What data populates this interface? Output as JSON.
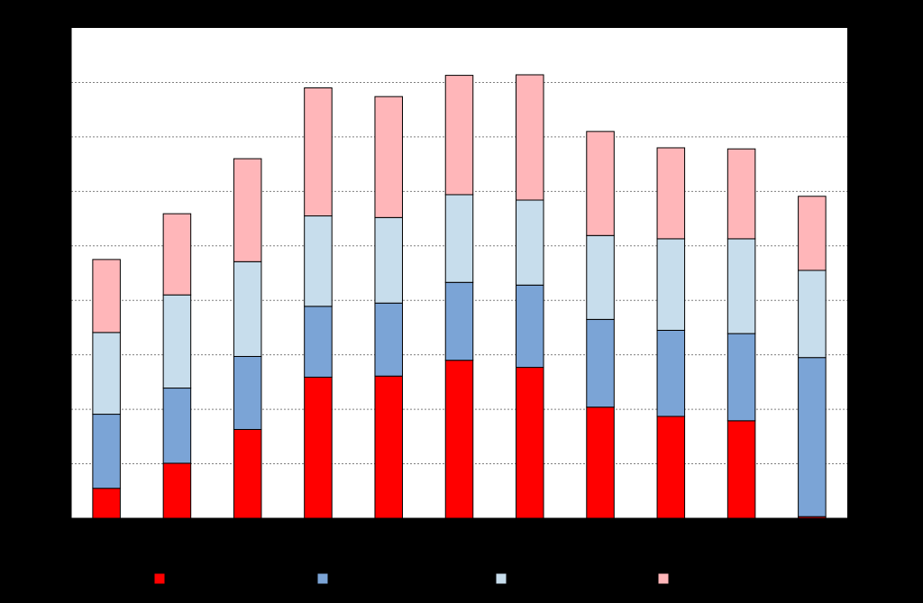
{
  "chart_data": {
    "type": "bar",
    "stacked": true,
    "categories": [
      "",
      "",
      "",
      "",
      "",
      "",
      "",
      "",
      "",
      "",
      ""
    ],
    "ylim": [
      0,
      9
    ],
    "grid": true,
    "legend_position": "bottom",
    "series": [
      {
        "color": "#ff0000",
        "values": [
          0.55,
          1.01,
          1.63,
          2.59,
          2.61,
          2.9,
          2.77,
          2.04,
          1.87,
          1.79,
          0.03
        ]
      },
      {
        "color": "#7ba4d6",
        "values": [
          1.36,
          1.38,
          1.34,
          1.3,
          1.34,
          1.43,
          1.51,
          1.61,
          1.58,
          1.6,
          2.92
        ]
      },
      {
        "color": "#c7ddec",
        "values": [
          1.5,
          1.71,
          1.74,
          1.66,
          1.57,
          1.61,
          1.56,
          1.54,
          1.68,
          1.74,
          1.6
        ]
      },
      {
        "color": "#ffb6b9",
        "values": [
          1.34,
          1.49,
          1.89,
          2.35,
          2.22,
          2.19,
          2.3,
          1.91,
          1.67,
          1.65,
          1.36
        ]
      }
    ]
  }
}
